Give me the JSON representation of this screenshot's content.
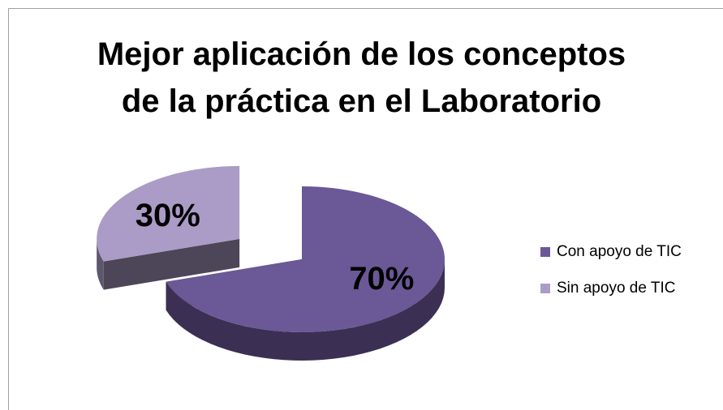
{
  "chart_data": {
    "type": "pie3d",
    "title": "Mejor aplicación de los conceptos\nde la práctica en el Laboratorio",
    "categories": [
      "Con apoyo de TIC",
      "Sin apoyo de TIC"
    ],
    "values": [
      70,
      30
    ],
    "value_labels": [
      "70%",
      "30%"
    ],
    "colors": [
      "#6b5897",
      "#aa9cc6"
    ],
    "explode": [
      false,
      true
    ],
    "legend": "right"
  }
}
